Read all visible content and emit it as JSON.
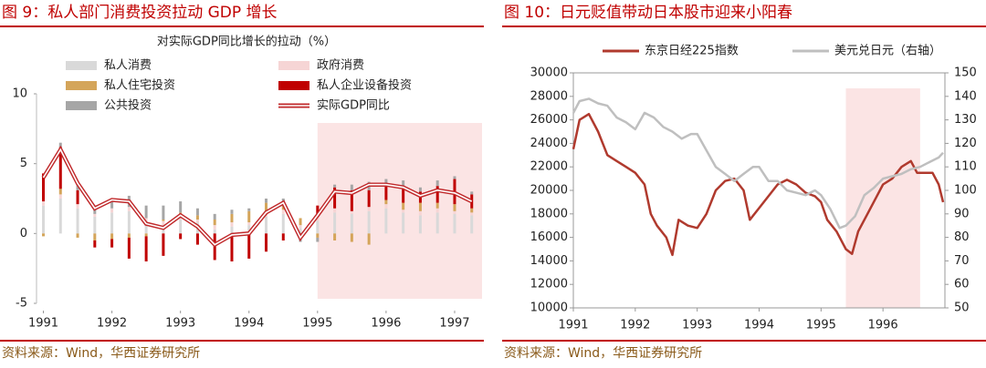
{
  "chart_data": [
    {
      "type": "combo",
      "title": "图 9：私人部门消费投资拉动 GDP 增长",
      "subtitle": "对实际GDP同比增长的拉动（%）",
      "source": "资料来源：Wind，华西证券研究所",
      "x": [
        1991,
        1991.25,
        1991.5,
        1991.75,
        1992,
        1992.25,
        1992.5,
        1992.75,
        1993,
        1993.25,
        1993.5,
        1993.75,
        1994,
        1994.25,
        1994.5,
        1994.75,
        1995,
        1995.25,
        1995.5,
        1995.75,
        1996,
        1996.25,
        1996.5,
        1996.75,
        1997,
        1997.25
      ],
      "xlim": [
        1990.9,
        1997.4
      ],
      "xticks": [
        1991,
        1992,
        1993,
        1994,
        1995,
        1996,
        1997
      ],
      "ylim": [
        -5,
        10
      ],
      "yticks": [
        -5,
        0,
        5,
        10
      ],
      "highlight": [
        1995,
        1997.4
      ],
      "series": [
        {
          "name": "私人消费",
          "type": "bar",
          "color": "#d9d9d9",
          "values": [
            2.0,
            2.5,
            1.8,
            1.2,
            1.5,
            1.6,
            0.9,
            0.6,
            1.0,
            0.8,
            0.3,
            0.5,
            0.6,
            1.2,
            1.4,
            0.4,
            0.9,
            1.5,
            1.4,
            1.6,
            1.8,
            1.5,
            1.3,
            1.5,
            1.4,
            1.3
          ]
        },
        {
          "name": "政府消费",
          "type": "bar",
          "color": "#f6d5d5",
          "values": [
            0.3,
            0.3,
            0.3,
            0.2,
            0.3,
            0.3,
            0.2,
            0.3,
            0.3,
            0.2,
            0.3,
            0.3,
            0.2,
            0.3,
            0.3,
            0.2,
            0.3,
            0.3,
            0.2,
            0.3,
            0.3,
            0.2,
            0.3,
            0.3,
            0.2,
            0.2
          ]
        },
        {
          "name": "私人住宅投资",
          "type": "bar",
          "color": "#d4a55a",
          "values": [
            -0.2,
            0.4,
            -0.3,
            -0.5,
            -0.4,
            -0.3,
            -0.2,
            0.1,
            0.2,
            0.3,
            0.4,
            0.6,
            0.8,
            0.7,
            0.6,
            0.5,
            -0.3,
            -0.5,
            -0.6,
            -0.8,
            0.3,
            0.5,
            0.6,
            0.4,
            0.5,
            0.3
          ]
        },
        {
          "name": "私人企业设备投资",
          "type": "bar",
          "color": "#c00000",
          "values": [
            2.0,
            3.0,
            1.0,
            -0.5,
            -0.6,
            -1.5,
            -1.8,
            -1.6,
            -0.4,
            -0.8,
            -1.9,
            -2.0,
            -1.8,
            -1.3,
            -0.5,
            -0.4,
            0.8,
            1.5,
            1.5,
            1.2,
            1.0,
            1.2,
            0.8,
            1.2,
            1.8,
            1.0
          ]
        },
        {
          "name": "公共投资",
          "type": "bar",
          "color": "#a6a6a6",
          "values": [
            0.0,
            0.3,
            0.5,
            0.6,
            0.7,
            0.8,
            0.9,
            1.0,
            0.8,
            0.5,
            0.4,
            0.3,
            0.2,
            0.3,
            0.2,
            -0.2,
            -0.3,
            0.2,
            0.4,
            0.6,
            0.5,
            0.4,
            0.3,
            0.4,
            0.2,
            0.2
          ]
        },
        {
          "name": "实际GDP同比",
          "type": "line",
          "color": "#c0292b",
          "values": [
            4.0,
            6.0,
            3.6,
            1.8,
            2.4,
            2.3,
            0.7,
            0.4,
            1.3,
            0.5,
            -0.8,
            -0.1,
            0.0,
            1.5,
            2.2,
            -0.3,
            1.3,
            3.0,
            2.9,
            3.5,
            3.5,
            3.3,
            2.7,
            3.1,
            2.9,
            2.3
          ]
        }
      ]
    },
    {
      "type": "line",
      "title": "图 10：日元贬值带动日本股市迎来小阳春",
      "source": "资料来源：Wind，华西证券研究所",
      "xlim": [
        1991,
        1997
      ],
      "xticks": [
        1991,
        1992,
        1993,
        1994,
        1995,
        1996
      ],
      "ylim": [
        10000,
        30000
      ],
      "yticks": [
        10000,
        12000,
        14000,
        16000,
        18000,
        20000,
        22000,
        24000,
        26000,
        28000,
        30000
      ],
      "y2lim": [
        50,
        150
      ],
      "y2ticks": [
        50,
        60,
        70,
        80,
        90,
        100,
        110,
        120,
        130,
        140,
        150
      ],
      "highlight": [
        1995.4,
        1996.6
      ],
      "series": [
        {
          "name": "东京日经225指数",
          "color": "#b03a2e",
          "x": [
            1991.0,
            1991.1,
            1991.25,
            1991.4,
            1991.55,
            1991.7,
            1991.85,
            1992.0,
            1992.15,
            1992.25,
            1992.35,
            1992.5,
            1992.6,
            1992.7,
            1992.85,
            1993.0,
            1993.15,
            1993.3,
            1993.45,
            1993.6,
            1993.75,
            1993.85,
            1994.0,
            1994.15,
            1994.3,
            1994.45,
            1994.6,
            1994.75,
            1994.9,
            1995.0,
            1995.1,
            1995.25,
            1995.4,
            1995.5,
            1995.6,
            1995.75,
            1995.9,
            1996.0,
            1996.15,
            1996.3,
            1996.45,
            1996.55,
            1996.7,
            1996.8,
            1996.9,
            1996.97
          ],
          "values": [
            23500,
            26000,
            26500,
            25000,
            23000,
            22500,
            22000,
            21500,
            20500,
            18000,
            17000,
            16000,
            14500,
            17500,
            17000,
            16800,
            18000,
            20000,
            20800,
            21000,
            20000,
            17500,
            18500,
            19500,
            20500,
            20900,
            20500,
            19800,
            19500,
            19000,
            17500,
            16500,
            15000,
            14600,
            16500,
            18000,
            19500,
            20500,
            21000,
            22000,
            22500,
            21500,
            21500,
            21500,
            20500,
            19000
          ]
        },
        {
          "name": "美元兑日元（右轴）",
          "color": "#bfbfbf",
          "axis": "y2",
          "x": [
            1991.0,
            1991.1,
            1991.25,
            1991.4,
            1991.55,
            1991.7,
            1991.85,
            1992.0,
            1992.15,
            1992.3,
            1992.45,
            1992.6,
            1992.75,
            1992.9,
            1993.0,
            1993.15,
            1993.3,
            1993.45,
            1993.6,
            1993.75,
            1993.9,
            1994.0,
            1994.15,
            1994.3,
            1994.45,
            1994.6,
            1994.75,
            1994.9,
            1995.0,
            1995.15,
            1995.3,
            1995.4,
            1995.55,
            1995.7,
            1995.85,
            1996.0,
            1996.15,
            1996.3,
            1996.45,
            1996.6,
            1996.75,
            1996.9,
            1996.97
          ],
          "values": [
            133,
            138,
            139,
            137,
            136,
            131,
            129,
            126,
            133,
            131,
            127,
            125,
            122,
            124,
            124,
            117,
            110,
            107,
            104,
            107,
            110,
            110,
            104,
            104,
            100,
            99,
            98,
            100,
            98,
            92,
            84,
            85,
            89,
            98,
            101,
            105,
            106,
            107,
            109,
            110,
            112,
            114,
            116
          ]
        }
      ]
    }
  ]
}
